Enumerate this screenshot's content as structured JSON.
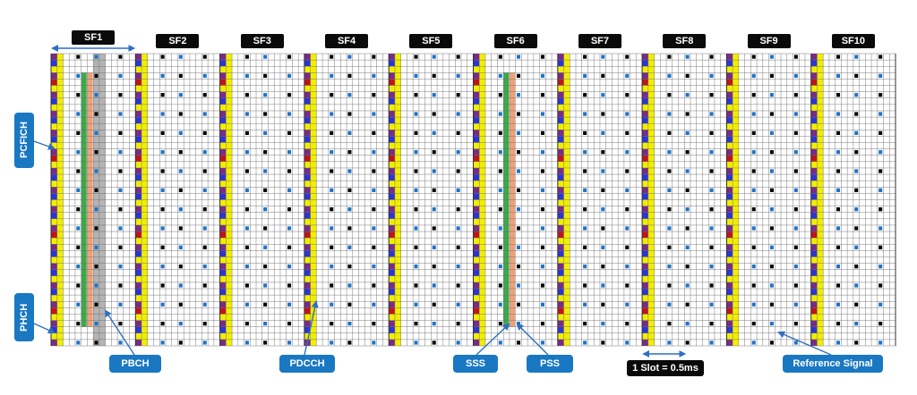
{
  "subframes": [
    "SF1",
    "SF2",
    "SF3",
    "SF4",
    "SF5",
    "SF6",
    "SF7",
    "SF8",
    "SF9",
    "SF10"
  ],
  "labels": {
    "pcfich": "PCFICH",
    "phich": "PHCH",
    "pbch": "PBCH",
    "pdcch": "PDCCH",
    "sss": "SSS",
    "pss": "PSS",
    "slot": "1 Slot = 0.5ms",
    "reference_signal": "Reference Signal"
  },
  "colors": {
    "pdcch": "#f2ee00",
    "pcfich_mark": "#2a34d8",
    "phich_mark": "#c2121c",
    "purple": "#7a2a8a",
    "reference_signal": "#1e73c8",
    "black_mark": "#000000",
    "pbch": "#b4b4b4",
    "sss": "#3aaa4a",
    "pss": "#f0a078",
    "label_bg": "#1a78c2",
    "arrow": "#2f6fc0",
    "grid_line": "#6e6e6e"
  },
  "icons": [
    "double-headed-arrow-icon",
    "pointer-arrow-icon"
  ]
}
